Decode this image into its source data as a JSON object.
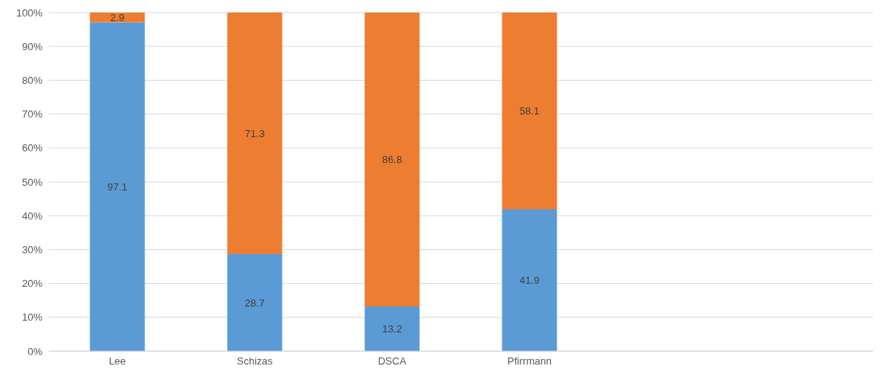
{
  "chart_data": {
    "type": "bar",
    "stacked": true,
    "categories": [
      "Lee",
      "Schizas",
      "DSCA",
      "Pfirrmann",
      null,
      null
    ],
    "series": [
      {
        "color": "#5b9bd5",
        "values": [
          97.1,
          28.7,
          13.2,
          41.9,
          null,
          null
        ]
      },
      {
        "color": "#ed7d31",
        "values": [
          2.9,
          71.3,
          86.8,
          58.1,
          null,
          null
        ]
      }
    ],
    "ylim": [
      0,
      100
    ],
    "yticks": [
      {
        "value": 0,
        "label": "0%"
      },
      {
        "value": 10,
        "label": "10%"
      },
      {
        "value": 20,
        "label": "20%"
      },
      {
        "value": 30,
        "label": "30%"
      },
      {
        "value": 40,
        "label": "40%"
      },
      {
        "value": 50,
        "label": "50%"
      },
      {
        "value": 60,
        "label": "60%"
      },
      {
        "value": 70,
        "label": "70%"
      },
      {
        "value": 80,
        "label": "80%"
      },
      {
        "value": 90,
        "label": "90%"
      },
      {
        "value": 100,
        "label": "100%"
      }
    ],
    "grid": "y",
    "data_labels": true
  }
}
